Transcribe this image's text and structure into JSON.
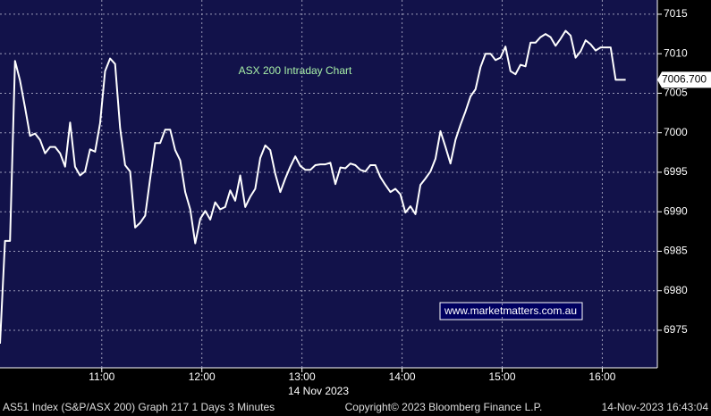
{
  "chart_data": {
    "type": "line",
    "title": "ASX 200 Intraday Chart",
    "watermark": "www.marketmatters.com.au",
    "x_label": "14 Nov 2023",
    "color": "#ffffff",
    "grid": true,
    "x": [
      599,
      602,
      605,
      608,
      611,
      614,
      617,
      620,
      623,
      626,
      629,
      632,
      635,
      638,
      641,
      644,
      647,
      650,
      653,
      656,
      659,
      662,
      665,
      668,
      671,
      674,
      677,
      680,
      683,
      686,
      689,
      692,
      695,
      698,
      701,
      704,
      707,
      710,
      713,
      716,
      719,
      722,
      725,
      728,
      731,
      734,
      737,
      740,
      743,
      746,
      749,
      752,
      755,
      758,
      761,
      764,
      767,
      770,
      773,
      776,
      779,
      782,
      785,
      788,
      791,
      794,
      797,
      800,
      803,
      806,
      809,
      812,
      815,
      818,
      821,
      824,
      827,
      830,
      833,
      836,
      839,
      842,
      845,
      848,
      851,
      854,
      857,
      860,
      863,
      866,
      869,
      872,
      875,
      878,
      881,
      884,
      887,
      890,
      893,
      896,
      899,
      902,
      905,
      908,
      911,
      914,
      917,
      920,
      923,
      926,
      929,
      932,
      935,
      938,
      941,
      944,
      947,
      950,
      953,
      956,
      959,
      962,
      965,
      968,
      971,
      974
    ],
    "values": [
      6973.3,
      6986.3,
      6986.3,
      7009.1,
      7006.6,
      7003.2,
      6999.6,
      6999.9,
      6999.1,
      6997.4,
      6998.2,
      6998.2,
      6997.4,
      6995.7,
      7001.3,
      6995.7,
      6994.6,
      6995.1,
      6997.9,
      6997.6,
      7001.2,
      7007.8,
      7009.4,
      7008.7,
      7000.6,
      6995.9,
      6995.1,
      6988.0,
      6988.6,
      6989.5,
      6994.2,
      6998.7,
      6998.7,
      7000.4,
      7000.4,
      6997.8,
      6996.5,
      6992.5,
      6990.3,
      6986.0,
      6989.1,
      6990.1,
      6989.0,
      6991.2,
      6990.3,
      6990.6,
      6992.7,
      6991.4,
      6994.6,
      6990.6,
      6991.9,
      6992.9,
      6996.8,
      6998.4,
      6997.8,
      6994.8,
      6992.5,
      6994.2,
      6995.7,
      6997.0,
      6995.8,
      6995.3,
      6995.3,
      6995.9,
      6996.0,
      6996.0,
      6996.2,
      6993.5,
      6995.6,
      6995.5,
      6996.1,
      6995.9,
      6995.3,
      6995.1,
      6995.9,
      6995.9,
      6994.4,
      6993.4,
      6992.5,
      6992.9,
      6992.2,
      6989.9,
      6990.7,
      6989.7,
      6993.4,
      6994.2,
      6995.1,
      6996.7,
      7000.2,
      6998.2,
      6996.1,
      6999.1,
      7001.0,
      7002.7,
      7004.6,
      7005.5,
      7008.3,
      7010.0,
      7010.0,
      7009.2,
      7009.5,
      7010.9,
      7007.8,
      7007.4,
      7008.6,
      7008.4,
      7011.4,
      7011.4,
      7012.1,
      7012.5,
      7012.1,
      7011.0,
      7011.9,
      7012.9,
      7012.3,
      7009.5,
      7010.3,
      7011.7,
      7011.2,
      7010.4,
      7010.8,
      7010.8,
      7010.8,
      7006.7,
      7006.7,
      7006.7
    ],
    "last_price": {
      "value": 7006.7,
      "label": "7006.700"
    },
    "xlim": [
      599,
      993
    ],
    "xticks": [
      {
        "value": 660,
        "label": "11:00"
      },
      {
        "value": 720,
        "label": "12:00"
      },
      {
        "value": 780,
        "label": "13:00"
      },
      {
        "value": 840,
        "label": "14:00"
      },
      {
        "value": 900,
        "label": "15:00"
      },
      {
        "value": 960,
        "label": "16:00"
      }
    ],
    "ylim": [
      6970.25,
      7016.8
    ],
    "yticks": [
      6975,
      6980,
      6985,
      6990,
      6995,
      7000,
      7005,
      7010,
      7015
    ]
  },
  "footer": {
    "left": "AS51 Index (S&P/ASX 200) Graph 217 1 Days 3 Minutes",
    "center": "Copyright© 2023 Bloomberg Finance L.P.",
    "right": "14-Nov-2023 16:43:04"
  }
}
